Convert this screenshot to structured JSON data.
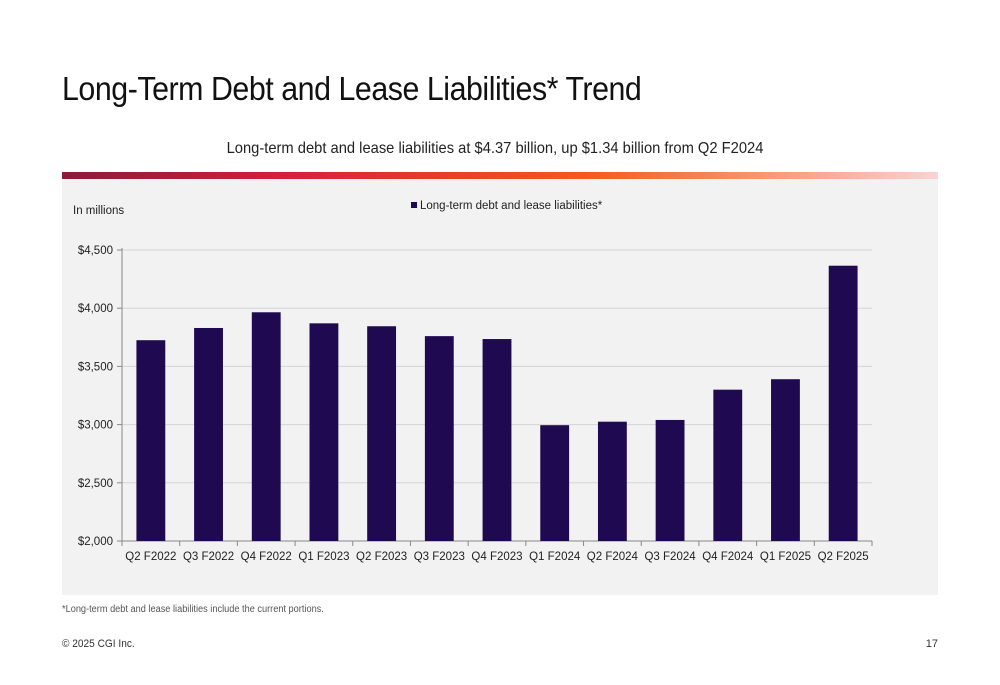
{
  "slide": {
    "title": "Long-Term Debt and Lease Liabilities* Trend",
    "subtitle": "Long-term debt and lease liabilities at $4.37 billion, up $1.34 billion from Q2 F2024",
    "footnote": "*Long-term debt and lease liabilities include the current portions.",
    "copyright": "© 2025 CGI Inc.",
    "page_number": "17"
  },
  "colors": {
    "bar": "#1f0a52",
    "panel_bg": "#f2f2f2",
    "gridline": "#d4d4d4",
    "accent_gradient": [
      "#8b1a3a",
      "#d41f3a",
      "#f5591f",
      "#f7a58a",
      "#fbd3d3"
    ]
  },
  "chart_data": {
    "type": "bar",
    "unit_note": "In millions",
    "legend": {
      "position": "top-center",
      "entries": [
        "Long-term debt and lease liabilities*"
      ]
    },
    "categories": [
      "Q2 F2022",
      "Q3 F2022",
      "Q4 F2022",
      "Q1 F2023",
      "Q2 F2023",
      "Q3 F2023",
      "Q4 F2023",
      "Q1 F2024",
      "Q2 F2024",
      "Q3 F2024",
      "Q4 F2024",
      "Q1 F2025",
      "Q2 F2025"
    ],
    "series": [
      {
        "name": "Long-term debt and lease liabilities*",
        "values": [
          3725,
          3830,
          3965,
          3870,
          3845,
          3760,
          3735,
          2995,
          3025,
          3040,
          3300,
          3390,
          4365
        ]
      }
    ],
    "ylim": [
      2000,
      4500
    ],
    "yticks": [
      2000,
      2500,
      3000,
      3500,
      4000,
      4500
    ],
    "ytick_labels": [
      "$2,000",
      "$2,500",
      "$3,000",
      "$3,500",
      "$4,000",
      "$4,500"
    ],
    "grid": true
  }
}
